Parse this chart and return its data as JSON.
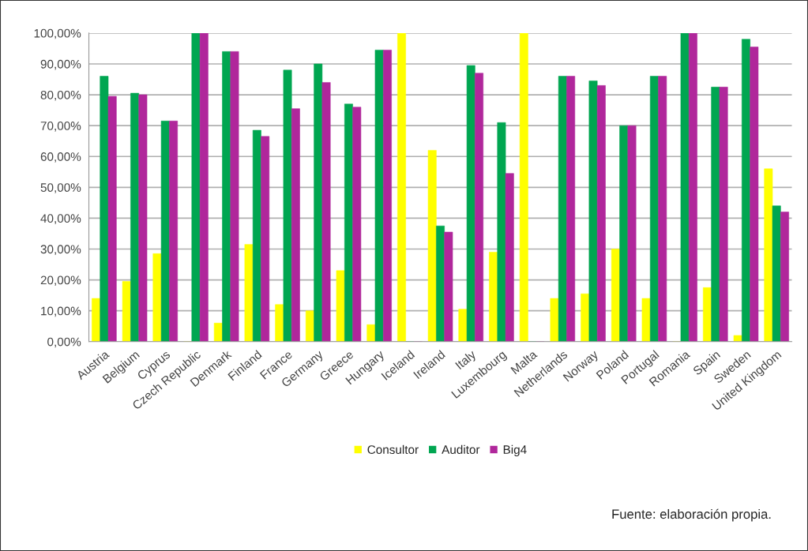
{
  "chart_data": {
    "type": "bar",
    "categories": [
      "Austria",
      "Belgium",
      "Cyprus",
      "Czech Republic",
      "Denmark",
      "Finland",
      "France",
      "Germany",
      "Greece",
      "Hungary",
      "Iceland",
      "Ireland",
      "Italy",
      "Luxembourg",
      "Malta",
      "Netherlands",
      "Norway",
      "Poland",
      "Portugal",
      "Romania",
      "Spain",
      "Sweden",
      "United Kingdom"
    ],
    "series": [
      {
        "name": "Consultor",
        "color": "#ffff00",
        "values": [
          14,
          19.5,
          28.5,
          0,
          6,
          31.5,
          12,
          10,
          23,
          5.5,
          100,
          62,
          10.5,
          29,
          100,
          14,
          15.5,
          30,
          14,
          0,
          17.5,
          2,
          56
        ]
      },
      {
        "name": "Auditor",
        "color": "#00a651",
        "values": [
          86,
          80.5,
          71.5,
          100,
          94,
          68.5,
          88,
          90,
          77,
          94.5,
          0,
          37.5,
          89.5,
          71,
          0,
          86,
          84.5,
          70,
          86,
          100,
          82.5,
          98,
          44
        ]
      },
      {
        "name": "Big4",
        "color": "#b0279b",
        "values": [
          79.5,
          80,
          71.5,
          100,
          94,
          66.5,
          75.5,
          84,
          76,
          94.5,
          0,
          35.5,
          87,
          54.5,
          0,
          86,
          83,
          70,
          86,
          100,
          82.5,
          95.5,
          42
        ]
      }
    ],
    "ylim": [
      0,
      100
    ],
    "yticks": [
      {
        "value": 0,
        "label": "0,00%"
      },
      {
        "value": 10,
        "label": "10,00%"
      },
      {
        "value": 20,
        "label": "20,00%"
      },
      {
        "value": 30,
        "label": "30,00%"
      },
      {
        "value": 40,
        "label": "40,00%"
      },
      {
        "value": 50,
        "label": "50,00%"
      },
      {
        "value": 60,
        "label": "60,00%"
      },
      {
        "value": 70,
        "label": "70,00%"
      },
      {
        "value": 80,
        "label": "80,00%"
      },
      {
        "value": 90,
        "label": "90,00%"
      },
      {
        "value": 100,
        "label": "100,00%"
      }
    ],
    "grid": "y",
    "legend": "bottom",
    "annotations": [
      "Fuente: elaboración propia."
    ]
  }
}
